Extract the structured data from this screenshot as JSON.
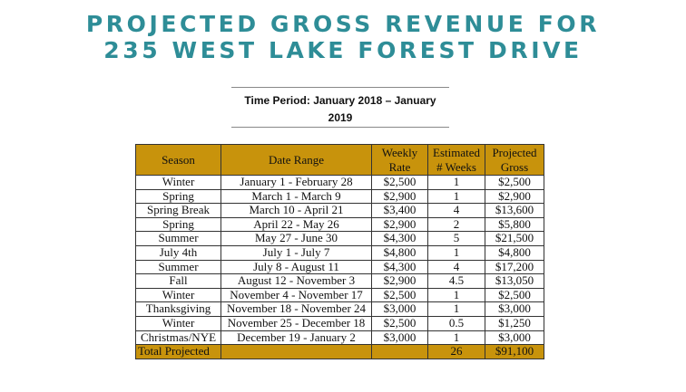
{
  "document": {
    "title_line1": "PROJECTED GROSS REVENUE FOR",
    "title_line2": "235 WEST LAKE FOREST DRIVE",
    "time_period": "Time Period: January 2018 – January 2019"
  },
  "table": {
    "headers": {
      "season": "Season",
      "date_range": "Date Range",
      "weekly_rate_1": "Weekly",
      "weekly_rate_2": "Rate",
      "weeks_1": "Estimated",
      "weeks_2": "# Weeks",
      "gross_1": "Projected",
      "gross_2": "Gross"
    },
    "rows": [
      {
        "season": "Winter",
        "date_range": "January 1 - February 28",
        "rate": "$2,500",
        "weeks": "1",
        "gross": "$2,500"
      },
      {
        "season": "Spring",
        "date_range": "March 1 - March 9",
        "rate": "$2,900",
        "weeks": "1",
        "gross": "$2,900"
      },
      {
        "season": "Spring Break",
        "date_range": "March 10 - April 21",
        "rate": "$3,400",
        "weeks": "4",
        "gross": "$13,600"
      },
      {
        "season": "Spring",
        "date_range": "April 22 - May 26",
        "rate": "$2,900",
        "weeks": "2",
        "gross": "$5,800"
      },
      {
        "season": "Summer",
        "date_range": "May 27 - June 30",
        "rate": "$4,300",
        "weeks": "5",
        "gross": "$21,500"
      },
      {
        "season": "July 4th",
        "date_range": "July 1 - July 7",
        "rate": "$4,800",
        "weeks": "1",
        "gross": "$4,800"
      },
      {
        "season": "Summer",
        "date_range": "July 8 - August 11",
        "rate": "$4,300",
        "weeks": "4",
        "gross": "$17,200"
      },
      {
        "season": "Fall",
        "date_range": "August 12 - November 3",
        "rate": "$2,900",
        "weeks": "4.5",
        "gross": "$13,050"
      },
      {
        "season": "Winter",
        "date_range": "November 4 - November 17",
        "rate": "$2,500",
        "weeks": "1",
        "gross": "$2,500"
      },
      {
        "season": "Thanksgiving",
        "date_range": "November 18 - November 24",
        "rate": "$3,000",
        "weeks": "1",
        "gross": "$3,000"
      },
      {
        "season": "Winter",
        "date_range": "November 25 - December 18",
        "rate": "$2,500",
        "weeks": "0.5",
        "gross": "$1,250"
      },
      {
        "season": "Christmas/NYE",
        "date_range": "December 19 - January 2",
        "rate": "$3,000",
        "weeks": "1",
        "gross": "$3,000"
      }
    ],
    "total": {
      "label": "Total Projected",
      "weeks": "26",
      "gross": "$91,100"
    }
  },
  "colors": {
    "title": "#2e8d97",
    "header_fill": "#c8930c"
  }
}
